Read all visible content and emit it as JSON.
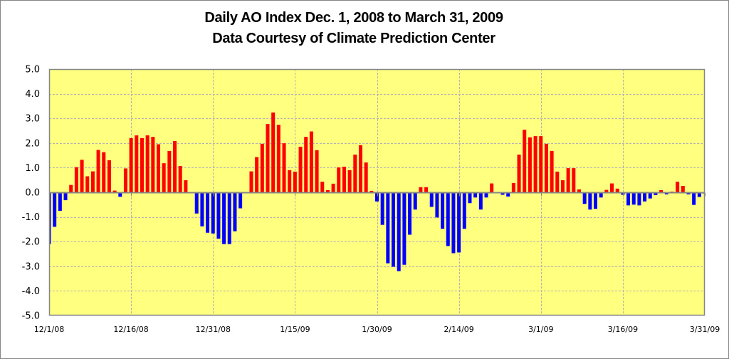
{
  "chart_data": {
    "type": "bar",
    "title": "Daily AO Index Dec. 1, 2008 to March 31, 2009",
    "subtitle": "Data Courtesy of Climate Prediction Center",
    "xlabel": "",
    "ylabel": "",
    "ylim": [
      -5.0,
      5.0
    ],
    "yticks": [
      "5.0",
      "4.0",
      "3.0",
      "2.0",
      "1.0",
      "0.0",
      "-1.0",
      "-2.0",
      "-3.0",
      "-4.0",
      "-5.0"
    ],
    "ytick_values": [
      5,
      4,
      3,
      2,
      1,
      0,
      -1,
      -2,
      -3,
      -4,
      -5
    ],
    "xtick_labels": [
      "12/1/08",
      "12/16/08",
      "12/31/08",
      "1/15/09",
      "1/30/09",
      "2/14/09",
      "3/1/09",
      "3/16/09",
      "3/31/09"
    ],
    "xtick_day_index": [
      0,
      15,
      30,
      45,
      60,
      75,
      90,
      105,
      120
    ],
    "x_start": "12/1/08",
    "x_end": "3/31/09",
    "grid": true,
    "colors": {
      "positive": "#ff0000",
      "negative": "#0000ff",
      "plot_bg": "#ffff80",
      "grid": "#b4b4b4",
      "axis": "#868686"
    },
    "series": [
      {
        "name": "Daily AO Index",
        "values": [
          -2.1,
          -1.4,
          -0.75,
          -0.32,
          0.3,
          1.02,
          1.32,
          0.65,
          0.85,
          1.72,
          1.63,
          1.3,
          0.07,
          -0.18,
          0.97,
          2.2,
          2.31,
          2.2,
          2.31,
          2.25,
          1.95,
          1.18,
          1.68,
          2.08,
          1.07,
          0.49,
          0.0,
          -0.86,
          -1.38,
          -1.64,
          -1.67,
          -1.88,
          -2.1,
          -2.1,
          -1.58,
          -0.65,
          0.0,
          0.85,
          1.43,
          1.97,
          2.77,
          3.24,
          2.74,
          1.99,
          0.9,
          0.84,
          1.85,
          2.25,
          2.47,
          1.71,
          0.43,
          0.09,
          0.35,
          1.01,
          1.04,
          0.9,
          1.53,
          1.91,
          1.21,
          0.06,
          -0.37,
          -1.32,
          -2.88,
          -3.02,
          -3.2,
          -2.94,
          -1.72,
          -0.7,
          0.21,
          0.21,
          -0.59,
          -1.02,
          -1.48,
          -2.18,
          -2.47,
          -2.44,
          -1.48,
          -0.44,
          -0.21,
          -0.7,
          -0.21,
          0.36,
          -0.04,
          -0.1,
          -0.17,
          0.38,
          1.53,
          2.54,
          2.23,
          2.28,
          2.28,
          1.97,
          1.68,
          0.84,
          0.49,
          0.98,
          0.98,
          0.12,
          -0.47,
          -0.7,
          -0.67,
          -0.21,
          0.1,
          0.36,
          0.15,
          -0.1,
          -0.53,
          -0.5,
          -0.53,
          -0.37,
          -0.25,
          -0.11,
          0.09,
          -0.08,
          0.03,
          0.43,
          0.26,
          -0.08,
          -0.51,
          -0.19,
          -0.05
        ]
      }
    ]
  }
}
